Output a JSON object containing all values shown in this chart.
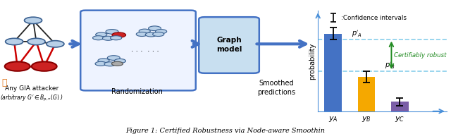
{
  "fig_width": 6.4,
  "fig_height": 1.9,
  "dpi": 100,
  "caption": "Figure 1: Certified Robustness via Node-aware Smoothin",
  "bar_categories": [
    "$y_A$",
    "$y_B$",
    "$y_C$"
  ],
  "bar_values": [
    0.75,
    0.33,
    0.09
  ],
  "bar_colors": [
    "#4472c4",
    "#f5a800",
    "#7b5ea7"
  ],
  "bar_error": [
    0.055,
    0.055,
    0.035
  ],
  "dashed_line_A": 0.695,
  "dashed_line_B": 0.385,
  "ylabel": "probability",
  "dashed_color": "#87ceeb",
  "arrow_color": "#228B22",
  "annotation_color": "#228B22",
  "background_color": "#ffffff",
  "axes_color": "#4a90d9",
  "node_color_light": "#a8c4e0",
  "node_color_dark": "#5588aa",
  "node_color_red": "#cc2222",
  "edge_color_black": "#222222",
  "edge_color_red": "#cc0000",
  "box_fill_rand": "#eef3ff",
  "box_edge_rand": "#4472c4",
  "box_fill_gm": "#c8dff0",
  "box_edge_gm": "#4472c4",
  "arrow_main_color": "#4472c4",
  "text_color": "#000000"
}
